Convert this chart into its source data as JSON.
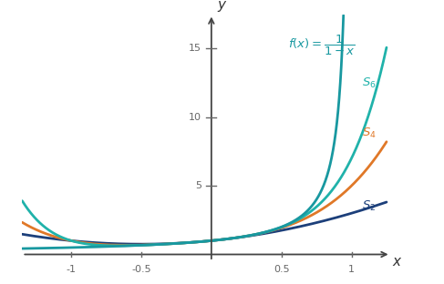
{
  "xlim": [
    -1.35,
    1.28
  ],
  "ylim": [
    -0.5,
    17.5
  ],
  "xticks": [
    -1.0,
    -0.5,
    0.5,
    1.0
  ],
  "xtick_labels": [
    "-1",
    "-0.5",
    "0.5",
    "1"
  ],
  "yticks": [
    5,
    10,
    15
  ],
  "ytick_labels": [
    "5",
    "10",
    "15"
  ],
  "f_color": "#1898a0",
  "S6_color": "#20b2aa",
  "S4_color": "#e07828",
  "S2_color": "#1c3f7a",
  "xlabel": "x",
  "ylabel": "y",
  "background": "#ffffff",
  "linewidth": 2.0,
  "f_linewidth": 2.0,
  "axis_color": "#444444",
  "tick_color": "#666666",
  "label_fontsize": 9.5,
  "tick_fontsize": 8.0,
  "axis_label_fontsize": 11
}
